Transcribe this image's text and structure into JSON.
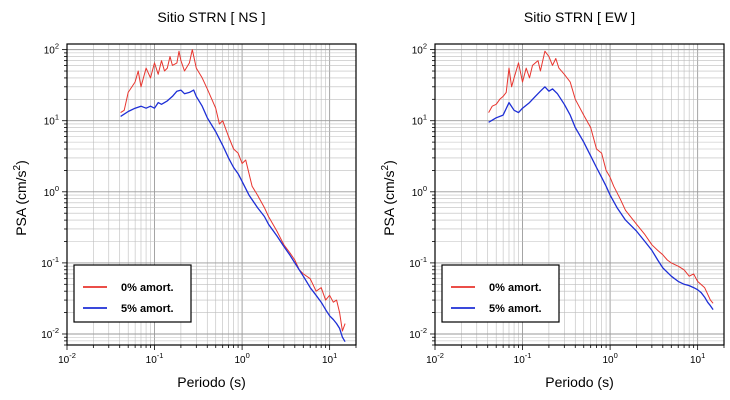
{
  "chart_data": [
    {
      "type": "line",
      "title": "Sitio STRN [ NS ]",
      "xlabel": "Periodo (s)",
      "ylabel": "PSA (cm/s2)",
      "x_scale": "log",
      "y_scale": "log",
      "xlim": [
        0.01,
        20
      ],
      "ylim": [
        0.007,
        120
      ],
      "grid": true,
      "legend_placement": "bottom-left",
      "x_ticks": [
        {
          "v": 0.01,
          "base": "10",
          "exp": "-2"
        },
        {
          "v": 0.1,
          "base": "10",
          "exp": "-1"
        },
        {
          "v": 1,
          "base": "10",
          "exp": "0"
        },
        {
          "v": 10,
          "base": "10",
          "exp": "1"
        }
      ],
      "y_ticks": [
        {
          "v": 0.01,
          "base": "10",
          "exp": "-2"
        },
        {
          "v": 0.1,
          "base": "10",
          "exp": "-1"
        },
        {
          "v": 1,
          "base": "10",
          "exp": "0"
        },
        {
          "v": 10,
          "base": "10",
          "exp": "1"
        },
        {
          "v": 100,
          "base": "10",
          "exp": "2"
        }
      ],
      "series": [
        {
          "name": "0% amort.",
          "color": "#e8352e",
          "points": [
            [
              0.041,
              13
            ],
            [
              0.045,
              14
            ],
            [
              0.05,
              25
            ],
            [
              0.06,
              35
            ],
            [
              0.065,
              50
            ],
            [
              0.07,
              30
            ],
            [
              0.08,
              55
            ],
            [
              0.09,
              40
            ],
            [
              0.1,
              65
            ],
            [
              0.11,
              45
            ],
            [
              0.12,
              70
            ],
            [
              0.13,
              50
            ],
            [
              0.14,
              55
            ],
            [
              0.15,
              80
            ],
            [
              0.16,
              60
            ],
            [
              0.18,
              65
            ],
            [
              0.19,
              95
            ],
            [
              0.2,
              70
            ],
            [
              0.22,
              50
            ],
            [
              0.25,
              65
            ],
            [
              0.27,
              100
            ],
            [
              0.3,
              55
            ],
            [
              0.35,
              40
            ],
            [
              0.4,
              28
            ],
            [
              0.5,
              15
            ],
            [
              0.55,
              9
            ],
            [
              0.6,
              10
            ],
            [
              0.7,
              6
            ],
            [
              0.8,
              4
            ],
            [
              0.9,
              3.5
            ],
            [
              1.0,
              2.5
            ],
            [
              1.1,
              2.8
            ],
            [
              1.3,
              1.2
            ],
            [
              1.5,
              0.9
            ],
            [
              1.8,
              0.6
            ],
            [
              2.0,
              0.45
            ],
            [
              2.5,
              0.28
            ],
            [
              3.0,
              0.18
            ],
            [
              3.5,
              0.14
            ],
            [
              4.0,
              0.11
            ],
            [
              4.5,
              0.08
            ],
            [
              5.0,
              0.07
            ],
            [
              6.0,
              0.06
            ],
            [
              7.0,
              0.04
            ],
            [
              8.0,
              0.045
            ],
            [
              9.0,
              0.03
            ],
            [
              10,
              0.035
            ],
            [
              11,
              0.028
            ],
            [
              12,
              0.03
            ],
            [
              13,
              0.02
            ],
            [
              14,
              0.011
            ],
            [
              15,
              0.014
            ]
          ]
        },
        {
          "name": "5% amort.",
          "color": "#1e2fd6",
          "points": [
            [
              0.041,
              11.5
            ],
            [
              0.05,
              13.5
            ],
            [
              0.06,
              15
            ],
            [
              0.07,
              16
            ],
            [
              0.08,
              15
            ],
            [
              0.09,
              16
            ],
            [
              0.1,
              15
            ],
            [
              0.11,
              18
            ],
            [
              0.12,
              17
            ],
            [
              0.14,
              19
            ],
            [
              0.16,
              22
            ],
            [
              0.18,
              26
            ],
            [
              0.2,
              27
            ],
            [
              0.22,
              24
            ],
            [
              0.25,
              25
            ],
            [
              0.28,
              27
            ],
            [
              0.3,
              22
            ],
            [
              0.35,
              16
            ],
            [
              0.4,
              11
            ],
            [
              0.5,
              7
            ],
            [
              0.6,
              4.5
            ],
            [
              0.7,
              3
            ],
            [
              0.8,
              2.2
            ],
            [
              0.9,
              1.8
            ],
            [
              1.0,
              1.4
            ],
            [
              1.2,
              0.9
            ],
            [
              1.5,
              0.6
            ],
            [
              1.8,
              0.45
            ],
            [
              2.0,
              0.35
            ],
            [
              2.5,
              0.24
            ],
            [
              3.0,
              0.17
            ],
            [
              3.5,
              0.13
            ],
            [
              4.0,
              0.1
            ],
            [
              5.0,
              0.065
            ],
            [
              6.0,
              0.045
            ],
            [
              7.0,
              0.035
            ],
            [
              8.0,
              0.028
            ],
            [
              9.0,
              0.022
            ],
            [
              10,
              0.018
            ],
            [
              11,
              0.016
            ],
            [
              12,
              0.014
            ],
            [
              13,
              0.012
            ],
            [
              14,
              0.009
            ],
            [
              15,
              0.0078
            ]
          ]
        }
      ]
    },
    {
      "type": "line",
      "title": "Sitio STRN [ EW ]",
      "xlabel": "Periodo (s)",
      "ylabel": "PSA (cm/s2)",
      "x_scale": "log",
      "y_scale": "log",
      "xlim": [
        0.01,
        20
      ],
      "ylim": [
        0.007,
        120
      ],
      "grid": true,
      "legend_placement": "bottom-left",
      "x_ticks": [
        {
          "v": 0.01,
          "base": "10",
          "exp": "-2"
        },
        {
          "v": 0.1,
          "base": "10",
          "exp": "-1"
        },
        {
          "v": 1,
          "base": "10",
          "exp": "0"
        },
        {
          "v": 10,
          "base": "10",
          "exp": "1"
        }
      ],
      "y_ticks": [
        {
          "v": 0.01,
          "base": "10",
          "exp": "-2"
        },
        {
          "v": 0.1,
          "base": "10",
          "exp": "-1"
        },
        {
          "v": 1,
          "base": "10",
          "exp": "0"
        },
        {
          "v": 10,
          "base": "10",
          "exp": "1"
        },
        {
          "v": 100,
          "base": "10",
          "exp": "2"
        }
      ],
      "series": [
        {
          "name": "0% amort.",
          "color": "#e8352e",
          "points": [
            [
              0.041,
              13
            ],
            [
              0.045,
              16
            ],
            [
              0.05,
              17
            ],
            [
              0.055,
              20
            ],
            [
              0.06,
              22
            ],
            [
              0.065,
              25
            ],
            [
              0.07,
              55
            ],
            [
              0.075,
              30
            ],
            [
              0.08,
              40
            ],
            [
              0.09,
              65
            ],
            [
              0.1,
              35
            ],
            [
              0.11,
              55
            ],
            [
              0.12,
              40
            ],
            [
              0.13,
              60
            ],
            [
              0.15,
              70
            ],
            [
              0.16,
              50
            ],
            [
              0.18,
              95
            ],
            [
              0.2,
              80
            ],
            [
              0.22,
              60
            ],
            [
              0.24,
              75
            ],
            [
              0.26,
              55
            ],
            [
              0.3,
              45
            ],
            [
              0.35,
              35
            ],
            [
              0.4,
              20
            ],
            [
              0.5,
              12
            ],
            [
              0.6,
              8
            ],
            [
              0.7,
              4
            ],
            [
              0.8,
              3.5
            ],
            [
              0.9,
              2
            ],
            [
              1.0,
              1.6
            ],
            [
              1.1,
              1.2
            ],
            [
              1.3,
              0.8
            ],
            [
              1.5,
              0.55
            ],
            [
              2.0,
              0.35
            ],
            [
              2.5,
              0.25
            ],
            [
              3.0,
              0.18
            ],
            [
              3.5,
              0.15
            ],
            [
              4.0,
              0.13
            ],
            [
              4.5,
              0.11
            ],
            [
              5.0,
              0.1
            ],
            [
              6.0,
              0.09
            ],
            [
              7.0,
              0.08
            ],
            [
              8.0,
              0.065
            ],
            [
              9.0,
              0.07
            ],
            [
              10,
              0.055
            ],
            [
              12,
              0.045
            ],
            [
              14,
              0.03
            ],
            [
              15,
              0.027
            ]
          ]
        },
        {
          "name": "5% amort.",
          "color": "#1e2fd6",
          "points": [
            [
              0.041,
              9.5
            ],
            [
              0.05,
              11
            ],
            [
              0.06,
              12
            ],
            [
              0.07,
              18
            ],
            [
              0.08,
              14
            ],
            [
              0.09,
              13
            ],
            [
              0.1,
              15
            ],
            [
              0.12,
              18
            ],
            [
              0.14,
              22
            ],
            [
              0.16,
              26
            ],
            [
              0.18,
              30
            ],
            [
              0.2,
              26
            ],
            [
              0.22,
              28
            ],
            [
              0.25,
              24
            ],
            [
              0.3,
              17
            ],
            [
              0.35,
              12
            ],
            [
              0.4,
              8
            ],
            [
              0.5,
              5
            ],
            [
              0.6,
              3.2
            ],
            [
              0.7,
              2.2
            ],
            [
              0.8,
              1.6
            ],
            [
              0.9,
              1.2
            ],
            [
              1.0,
              0.9
            ],
            [
              1.2,
              0.6
            ],
            [
              1.5,
              0.4
            ],
            [
              2.0,
              0.28
            ],
            [
              2.5,
              0.2
            ],
            [
              3.0,
              0.15
            ],
            [
              3.5,
              0.11
            ],
            [
              4.0,
              0.085
            ],
            [
              5.0,
              0.065
            ],
            [
              6.0,
              0.055
            ],
            [
              7.0,
              0.05
            ],
            [
              8.0,
              0.048
            ],
            [
              9.0,
              0.045
            ],
            [
              10,
              0.042
            ],
            [
              11,
              0.038
            ],
            [
              12,
              0.033
            ],
            [
              13,
              0.028
            ],
            [
              14,
              0.025
            ],
            [
              15,
              0.022
            ]
          ]
        }
      ]
    }
  ]
}
